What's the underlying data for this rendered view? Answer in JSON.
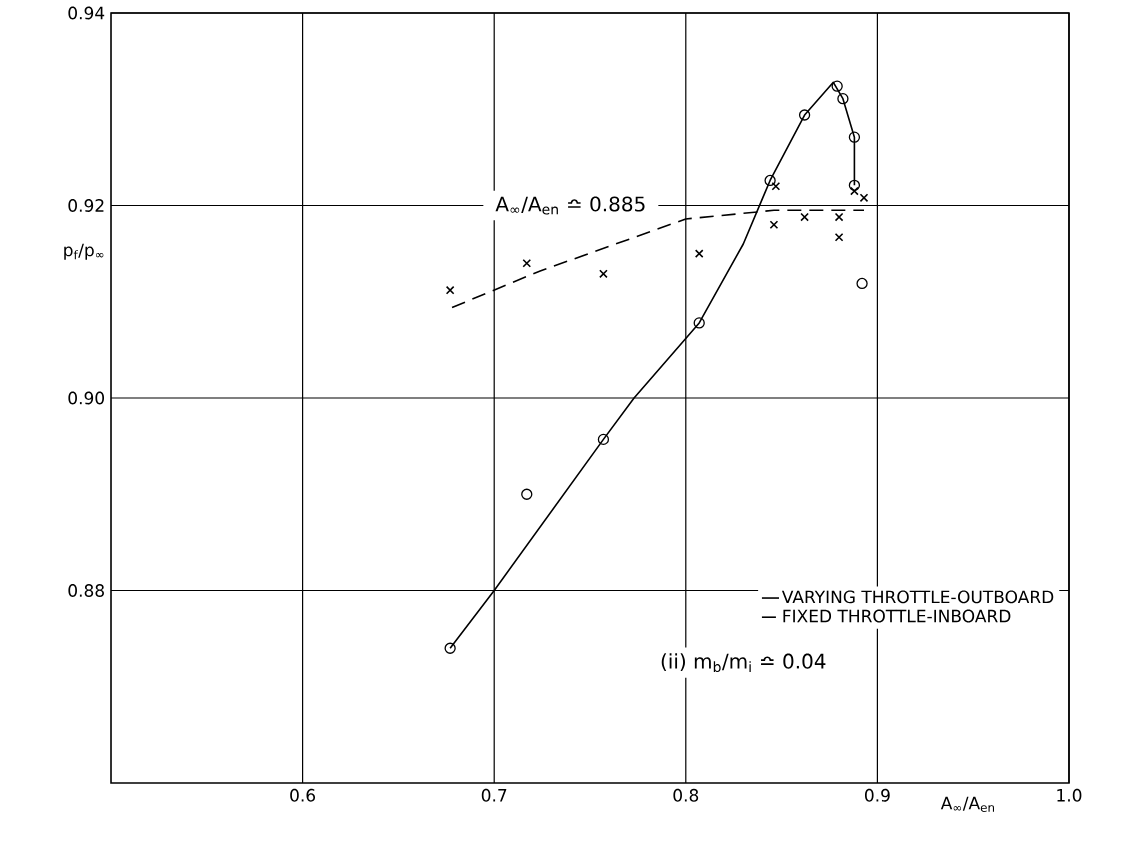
{
  "chart_data": {
    "type": "line",
    "xlabel": "A$_{∞}$/A$_{en}$",
    "ylabel": "p$_{f}$/p$_{∞}$",
    "annotations": [
      "A$_{∞}$/A$_{en}$ ≏ 0.885",
      "(ii) m$_{b}$/m$_{i}$ ≏ 0.04"
    ],
    "xlim": [
      0.5,
      1.0
    ],
    "ylim": [
      0.86,
      0.94
    ],
    "xticks": [
      0.6,
      0.7,
      0.8,
      0.9,
      {
        "value": 1.0,
        "label": "1.0"
      }
    ],
    "yticks": [
      {
        "value": 0.88,
        "label": "0.88"
      },
      {
        "value": 0.9,
        "label": "0.90"
      },
      {
        "value": 0.92,
        "label": "0.92"
      },
      {
        "value": 0.94,
        "label": "0.94"
      }
    ],
    "grid": true,
    "legend": "bottom right",
    "color": "#000000",
    "series": [
      {
        "name": "VARYING THROTTLE-OUTBOARD",
        "line_style": "solid",
        "marker": "none",
        "x": [
          0.677,
          0.7,
          0.757,
          0.773,
          0.807,
          0.83,
          0.844,
          0.862,
          0.877,
          0.882,
          0.888,
          0.888
        ],
        "values": [
          0.874,
          0.88,
          0.8957,
          0.9,
          0.9078,
          0.916,
          0.9226,
          0.9294,
          0.9328,
          0.9311,
          0.9271,
          0.9221
        ]
      },
      {
        "name": "FIXED THROTTLE-INBOARD",
        "line_style": "dashed",
        "marker": "none",
        "x": [
          0.678,
          0.724,
          0.8,
          0.846,
          0.893
        ],
        "values": [
          0.9094,
          0.9132,
          0.9186,
          0.9195,
          0.9195
        ]
      },
      {
        "type": "scatter",
        "marker": "circle",
        "x": [
          0.677,
          0.717,
          0.757,
          0.807,
          0.844,
          0.862,
          0.879,
          0.882,
          0.888,
          0.888,
          0.892
        ],
        "values": [
          0.874,
          0.89,
          0.8957,
          0.9078,
          0.9226,
          0.9294,
          0.9324,
          0.9311,
          0.9271,
          0.9221,
          0.9119
        ]
      },
      {
        "type": "scatter",
        "marker": "cross",
        "x": [
          0.677,
          0.717,
          0.757,
          0.807,
          0.847,
          0.846,
          0.862,
          0.88,
          0.88,
          0.888,
          0.893
        ],
        "values": [
          0.9112,
          0.914,
          0.9129,
          0.915,
          0.922,
          0.918,
          0.9188,
          0.9188,
          0.9167,
          0.9215,
          0.9208
        ]
      }
    ]
  }
}
